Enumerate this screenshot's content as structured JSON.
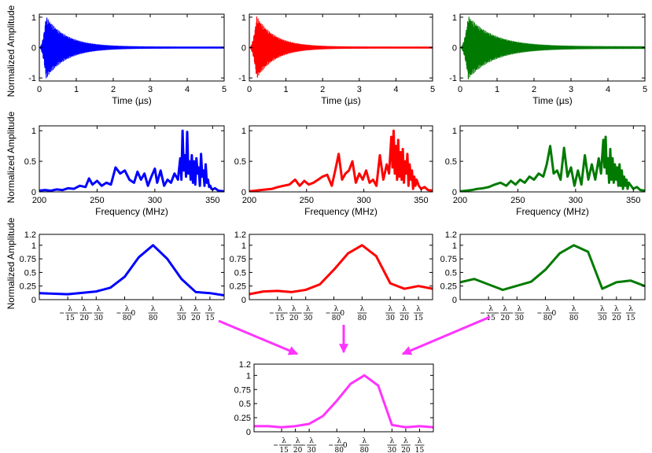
{
  "colors": {
    "blue": "#0000ff",
    "red": "#ff0000",
    "green": "#007a00",
    "magenta": "#ff33ff"
  },
  "ylabel": "Normalized Amplitude",
  "chart_data": [
    {
      "id": "time-blue",
      "type": "line",
      "color": "blue",
      "xlabel": "Time (µs)",
      "ylabel": "Normalized Amplitude",
      "xlim": [
        0,
        5
      ],
      "ylim": [
        -1.1,
        1.1
      ],
      "xticks": [
        0,
        1,
        2,
        3,
        4,
        5
      ],
      "yticks": [
        -1,
        0,
        1
      ],
      "signal": {
        "peak_time": 0.18,
        "peak": 1.0,
        "decay": 0.55,
        "freq_per_us": 300,
        "floor": 0.02
      }
    },
    {
      "id": "time-red",
      "type": "line",
      "color": "red",
      "xlabel": "Time (µs)",
      "ylabel": "",
      "xlim": [
        0,
        5
      ],
      "ylim": [
        -1.1,
        1.1
      ],
      "xticks": [
        0,
        1,
        2,
        3,
        4,
        5
      ],
      "yticks": [
        -1,
        0,
        1
      ],
      "signal": {
        "peak_time": 0.2,
        "peak": 1.0,
        "decay": 0.5,
        "freq_per_us": 300,
        "floor": 0.02
      }
    },
    {
      "id": "time-green",
      "type": "line",
      "color": "green",
      "xlabel": "Time (µs)",
      "ylabel": "",
      "xlim": [
        0,
        5
      ],
      "ylim": [
        -1.1,
        1.1
      ],
      "xticks": [
        0,
        1,
        2,
        3,
        4,
        5
      ],
      "yticks": [
        -1,
        0,
        1
      ],
      "signal": {
        "peak_time": 0.22,
        "peak": 1.0,
        "decay": 0.7,
        "freq_per_us": 300,
        "floor": 0.03
      }
    },
    {
      "id": "freq-blue",
      "type": "line",
      "color": "blue",
      "xlabel": "Frequency (MHz)",
      "ylabel": "Normalized Amplitude",
      "xlim": [
        200,
        360
      ],
      "ylim": [
        0,
        1.08
      ],
      "xticks": [
        200,
        250,
        300,
        350
      ],
      "yticks": [
        0,
        0.5,
        1
      ],
      "x": [
        200,
        205,
        210,
        215,
        220,
        225,
        230,
        235,
        240,
        243,
        246,
        250,
        254,
        258,
        262,
        266,
        270,
        274,
        278,
        282,
        285,
        288,
        291,
        294,
        297,
        300,
        302,
        305,
        308,
        311,
        314,
        317,
        320,
        322,
        323,
        324,
        325,
        326,
        327,
        328,
        329,
        330,
        331,
        332,
        333,
        334,
        335,
        336,
        337,
        338,
        339,
        340,
        341,
        342,
        343,
        344,
        345,
        346,
        347,
        348,
        349,
        350,
        352,
        355,
        360
      ],
      "y": [
        0.02,
        0.03,
        0.02,
        0.04,
        0.03,
        0.06,
        0.05,
        0.1,
        0.08,
        0.22,
        0.12,
        0.18,
        0.1,
        0.15,
        0.12,
        0.4,
        0.3,
        0.35,
        0.2,
        0.15,
        0.33,
        0.2,
        0.3,
        0.1,
        0.25,
        0.38,
        0.15,
        0.35,
        0.1,
        0.2,
        0.15,
        0.3,
        0.2,
        0.55,
        0.2,
        1.0,
        0.35,
        0.6,
        0.25,
        0.98,
        0.3,
        0.5,
        0.2,
        0.6,
        0.15,
        0.5,
        0.12,
        0.55,
        0.3,
        0.4,
        0.1,
        0.62,
        0.25,
        0.35,
        0.1,
        0.45,
        0.15,
        0.2,
        0.08,
        0.1,
        0.05,
        0.04,
        0.06,
        0.02,
        0.01
      ]
    },
    {
      "id": "freq-red",
      "type": "line",
      "color": "red",
      "xlabel": "Frequency (MHz)",
      "ylabel": "",
      "xlim": [
        200,
        360
      ],
      "ylim": [
        0,
        1.08
      ],
      "xticks": [
        200,
        250,
        300,
        350
      ],
      "yticks": [
        0,
        0.5,
        1
      ],
      "x": [
        200,
        205,
        210,
        215,
        220,
        225,
        230,
        235,
        240,
        244,
        248,
        252,
        256,
        260,
        264,
        268,
        272,
        275,
        278,
        281,
        284,
        287,
        290,
        293,
        296,
        299,
        302,
        305,
        308,
        311,
        314,
        317,
        320,
        322,
        324,
        325,
        326,
        327,
        328,
        329,
        330,
        331,
        332,
        333,
        334,
        335,
        336,
        337,
        338,
        339,
        340,
        341,
        342,
        343,
        344,
        345,
        346,
        348,
        350,
        353,
        356,
        360
      ],
      "y": [
        0.01,
        0.02,
        0.03,
        0.04,
        0.05,
        0.08,
        0.1,
        0.12,
        0.2,
        0.1,
        0.18,
        0.12,
        0.15,
        0.2,
        0.25,
        0.28,
        0.1,
        0.35,
        0.62,
        0.2,
        0.3,
        0.35,
        0.5,
        0.15,
        0.3,
        0.2,
        0.35,
        0.15,
        0.2,
        0.1,
        0.6,
        0.2,
        0.45,
        0.3,
        0.9,
        0.4,
        1.0,
        0.3,
        0.75,
        0.2,
        0.85,
        0.25,
        0.65,
        0.2,
        0.7,
        0.15,
        0.5,
        0.3,
        0.62,
        0.1,
        0.45,
        0.2,
        0.35,
        0.05,
        0.25,
        0.1,
        0.2,
        0.1,
        0.05,
        0.08,
        0.03,
        0.02
      ]
    },
    {
      "id": "freq-green",
      "type": "line",
      "color": "green",
      "xlabel": "Frequency (MHz)",
      "ylabel": "",
      "xlim": [
        200,
        360
      ],
      "ylim": [
        0,
        1.08
      ],
      "xticks": [
        200,
        250,
        300,
        350
      ],
      "yticks": [
        0,
        0.5,
        1
      ],
      "x": [
        200,
        205,
        210,
        215,
        220,
        225,
        230,
        235,
        240,
        244,
        248,
        252,
        256,
        260,
        264,
        268,
        272,
        275,
        278,
        281,
        284,
        287,
        290,
        293,
        296,
        299,
        302,
        305,
        308,
        311,
        314,
        317,
        320,
        322,
        324,
        325,
        326,
        327,
        328,
        329,
        330,
        331,
        332,
        333,
        334,
        335,
        336,
        337,
        338,
        339,
        340,
        341,
        342,
        343,
        344,
        345,
        346,
        348,
        350,
        353,
        356,
        360
      ],
      "y": [
        0.01,
        0.02,
        0.03,
        0.05,
        0.06,
        0.08,
        0.12,
        0.15,
        0.1,
        0.18,
        0.12,
        0.2,
        0.15,
        0.25,
        0.2,
        0.3,
        0.25,
        0.45,
        0.75,
        0.3,
        0.35,
        0.2,
        0.72,
        0.25,
        0.4,
        0.1,
        0.35,
        0.12,
        0.6,
        0.2,
        0.45,
        0.2,
        0.55,
        0.3,
        0.85,
        0.4,
        0.9,
        0.3,
        0.55,
        0.15,
        0.7,
        0.2,
        0.55,
        0.15,
        0.45,
        0.2,
        0.4,
        0.1,
        0.45,
        0.1,
        0.35,
        0.05,
        0.25,
        0.1,
        0.2,
        0.05,
        0.15,
        0.1,
        0.05,
        0.08,
        0.03,
        0.02
      ]
    },
    {
      "id": "beam-blue",
      "type": "line",
      "color": "blue",
      "xlabel": "",
      "ylabel": "Normalized Amplitude",
      "xlim": [
        0,
        13
      ],
      "ylim": [
        0,
        1.2
      ],
      "yticks": [
        0,
        0.25,
        0.5,
        0.75,
        1,
        1.2
      ],
      "x": [
        0,
        2,
        4,
        5,
        6,
        7,
        8,
        9,
        10,
        11,
        12,
        13
      ],
      "y": [
        0.12,
        0.1,
        0.15,
        0.22,
        0.42,
        0.78,
        1.0,
        0.75,
        0.38,
        0.14,
        0.12,
        0.08
      ]
    },
    {
      "id": "beam-red",
      "type": "line",
      "color": "red",
      "xlabel": "",
      "ylabel": "",
      "xlim": [
        0,
        13
      ],
      "ylim": [
        0,
        1.2
      ],
      "yticks": [
        0,
        0.25,
        0.5,
        0.75,
        1,
        1.2
      ],
      "x": [
        0,
        1,
        2,
        3,
        4,
        5,
        6,
        7,
        8,
        9,
        10,
        11,
        12,
        13
      ],
      "y": [
        0.1,
        0.15,
        0.16,
        0.14,
        0.18,
        0.28,
        0.55,
        0.85,
        1.0,
        0.8,
        0.3,
        0.2,
        0.25,
        0.2
      ]
    },
    {
      "id": "beam-green",
      "type": "line",
      "color": "green",
      "xlabel": "",
      "ylabel": "",
      "xlim": [
        0,
        13
      ],
      "ylim": [
        0,
        1.2
      ],
      "yticks": [
        0,
        0.25,
        0.5,
        0.75,
        1,
        1.2
      ],
      "x": [
        0,
        1,
        3,
        5,
        6,
        7,
        8,
        9,
        10,
        11,
        12,
        13
      ],
      "y": [
        0.32,
        0.38,
        0.18,
        0.33,
        0.55,
        0.85,
        1.0,
        0.88,
        0.2,
        0.32,
        0.35,
        0.25
      ]
    },
    {
      "id": "beam-magenta",
      "type": "line",
      "color": "magenta",
      "xlabel": "",
      "ylabel": "",
      "xlim": [
        0,
        13
      ],
      "ylim": [
        0,
        1.2
      ],
      "yticks": [
        0,
        0.25,
        0.5,
        0.75,
        1,
        1.2
      ],
      "x": [
        0,
        1,
        2,
        3,
        4,
        5,
        6,
        7,
        8,
        9,
        10,
        11,
        12,
        13
      ],
      "y": [
        0.1,
        0.1,
        0.08,
        0.1,
        0.14,
        0.28,
        0.55,
        0.85,
        1.0,
        0.82,
        0.12,
        0.08,
        0.1,
        0.08
      ]
    }
  ],
  "beam_ticks": [
    {
      "pos": 2,
      "neg": true,
      "den": "15"
    },
    {
      "pos": 3,
      "neg": true,
      "den": "20"
    },
    {
      "pos": 4,
      "neg": true,
      "den": "30"
    },
    {
      "pos": 6,
      "neg": true,
      "den": "80"
    },
    {
      "pos": 6.6,
      "zero": true
    },
    {
      "pos": 8,
      "neg": false,
      "den": "80"
    },
    {
      "pos": 10,
      "neg": false,
      "den": "30"
    },
    {
      "pos": 11,
      "neg": false,
      "den": "20"
    },
    {
      "pos": 12,
      "neg": false,
      "den": "15"
    }
  ]
}
